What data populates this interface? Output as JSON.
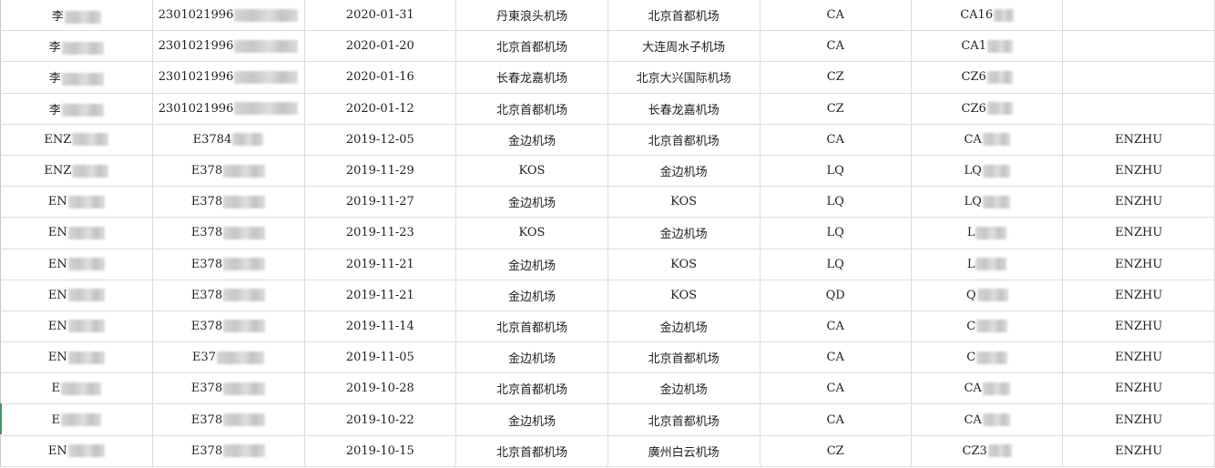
{
  "rows": [
    [
      "李",
      "2301021996",
      "2020-01-31",
      "丹東浪头机场",
      "北京首都机场",
      "CA",
      "CA16",
      ""
    ],
    [
      "李",
      "2301021996",
      "2020-01-20",
      "北京首都机场",
      "大连周水子机场",
      "CA",
      "CA1",
      ""
    ],
    [
      "李",
      "2301021996",
      "2020-01-16",
      "长春龙嘉机场",
      "北京大兴国际机场",
      "CZ",
      "CZ6",
      ""
    ],
    [
      "李",
      "2301021996",
      "2020-01-12",
      "北京首都机场",
      "长春龙嘉机场",
      "CZ",
      "CZ6",
      ""
    ],
    [
      "ENZ",
      "E3784",
      "2019-12-05",
      "金边机场",
      "北京首都机场",
      "CA",
      "CA",
      "ENZHU"
    ],
    [
      "ENZ",
      "E378",
      "2019-11-29",
      "KOS",
      "金边机场",
      "LQ",
      "LQ",
      "ENZHU"
    ],
    [
      "EN",
      "E378",
      "2019-11-27",
      "金边机场",
      "KOS",
      "LQ",
      "LQ",
      "ENZHU"
    ],
    [
      "EN",
      "E378",
      "2019-11-23",
      "KOS",
      "金边机场",
      "LQ",
      "L",
      "ENZHU"
    ],
    [
      "EN",
      "E378",
      "2019-11-21",
      "金边机场",
      "KOS",
      "LQ",
      "L",
      "ENZHU"
    ],
    [
      "EN",
      "E378",
      "2019-11-21",
      "金边机场",
      "KOS",
      "QD",
      "Q",
      "ENZHU"
    ],
    [
      "EN",
      "E378",
      "2019-11-14",
      "北京首都机场",
      "金边机场",
      "CA",
      "C",
      "ENZHU"
    ],
    [
      "EN",
      "E37",
      "2019-11-05",
      "金边机场",
      "北京首都机场",
      "CA",
      "C",
      "ENZHU"
    ],
    [
      "E",
      "E378",
      "2019-10-28",
      "北京首都机场",
      "金边机场",
      "CA",
      "CA",
      "ENZHU"
    ],
    [
      "E",
      "E378",
      "2019-10-22",
      "金边机场",
      "北京首都机场",
      "CA",
      "CA",
      "ENZHU"
    ],
    [
      "EN",
      "E378",
      "2019-10-15",
      "北京首都机场",
      "廣州白云机场",
      "CZ",
      "CZ3",
      "ENZHU"
    ]
  ],
  "colors": {
    "grid": "#dcdcdc",
    "text": "#222222",
    "selection_edge": "#3c9a63"
  }
}
